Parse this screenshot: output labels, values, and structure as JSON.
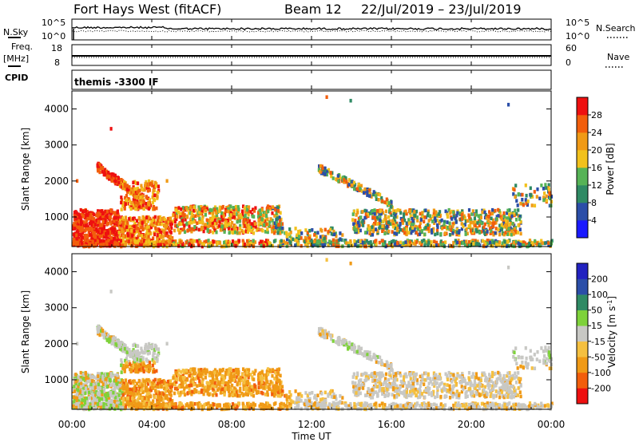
{
  "header": {
    "station": "Fort Hays West (fitACF)",
    "beam": "Beam 12",
    "date_range": "22/Jul/2019 – 23/Jul/2019"
  },
  "top_panels": {
    "nsky_label": "N.Sky",
    "nsky_ticks": [
      "10^5",
      "10^0"
    ],
    "nsearch_label": "N.Search",
    "nsearch_ticks": [
      "10^5",
      "10^0"
    ],
    "freq_label": "Freq.",
    "freq_unit": "[MHz]",
    "freq_ticks": [
      "18",
      "8"
    ],
    "nave_label": "Nave",
    "nave_ticks": [
      "60",
      "0"
    ],
    "cpid_label": "CPID",
    "cpid_value": "themis -3300 IF"
  },
  "x_axis": {
    "label": "Time UT",
    "ticks": [
      "00:00",
      "04:00",
      "08:00",
      "12:00",
      "16:00",
      "20:00",
      "00:00"
    ]
  },
  "colors": {
    "power": [
      "#1a1aff",
      "#2b4ea8",
      "#2f8a64",
      "#56b356",
      "#f2c11c",
      "#f09a16",
      "#f25e0c",
      "#ee1010"
    ],
    "velocity": [
      "#ee1010",
      "#f25e0c",
      "#f09a16",
      "#f5c040",
      "#c8c8c4",
      "#7ed23a",
      "#2f8a64",
      "#2b4ea8",
      "#2222c0"
    ]
  },
  "chart_data": [
    {
      "type": "heatmap",
      "quantity": "power",
      "ylabel": "Slant Range [km]",
      "yticks": [
        "1000",
        "2000",
        "3000",
        "4000"
      ],
      "ylim": [
        180,
        4500
      ],
      "xlim_hours": [
        0,
        24
      ],
      "colorbar_label": "Power [dB]",
      "colorbar_ticks": [
        "4",
        "8",
        "12",
        "16",
        "20",
        "24",
        "28"
      ],
      "colorbar_range": [
        0,
        32
      ]
    },
    {
      "type": "heatmap",
      "quantity": "velocity",
      "ylabel": "Slant Range [km]",
      "yticks": [
        "1000",
        "2000",
        "3000",
        "4000"
      ],
      "ylim": [
        180,
        4500
      ],
      "xlim_hours": [
        0,
        24
      ],
      "colorbar_label": "Velocity [m s^-1]",
      "colorbar_ticks": [
        "200",
        "100",
        "50",
        "15",
        "-15",
        "-50",
        "-100",
        "-200"
      ]
    }
  ]
}
